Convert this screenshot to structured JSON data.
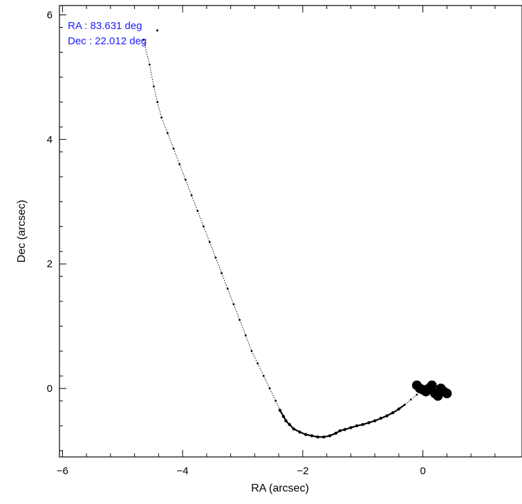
{
  "chart_data": {
    "type": "scatter",
    "title": "",
    "xlabel": "RA (arcsec)",
    "ylabel": "Dec (arcsec)",
    "xlim": [
      -6.05,
      1.65
    ],
    "ylim": [
      -1.1,
      6.15
    ],
    "xticks": [
      -6,
      -4,
      -2,
      0
    ],
    "xtick_labels": [
      "−6",
      "−4",
      "−2",
      "0"
    ],
    "yticks": [
      0,
      2,
      4,
      6
    ],
    "ytick_labels": [
      "0",
      "2",
      "4",
      "6"
    ],
    "grid": false,
    "legend": "none",
    "annotations": [
      "RA : 83.631 deg",
      "Dec : 22.012 deg"
    ],
    "annotation_color": "#1a1aff",
    "marker_color": "#000000",
    "track": {
      "x": [
        -4.65,
        -4.55,
        -4.48,
        -4.42,
        -4.35,
        -4.25,
        -4.15,
        -4.05,
        -3.95,
        -3.85,
        -3.75,
        -3.65,
        -3.55,
        -3.45,
        -3.35,
        -3.25,
        -3.15,
        -3.05,
        -2.95,
        -2.85,
        -2.75,
        -2.65,
        -2.55,
        -2.45,
        -2.38,
        -2.32,
        -2.28,
        -2.22,
        -2.15,
        -2.05,
        -1.95,
        -1.85,
        -1.75,
        -1.65,
        -1.55,
        -1.45,
        -1.38,
        -1.3,
        -1.2,
        -1.1,
        -1.0,
        -0.9,
        -0.8,
        -0.7,
        -0.6,
        -0.5,
        -0.4,
        -0.3,
        -0.2,
        -0.1
      ],
      "y": [
        5.6,
        5.2,
        4.85,
        4.6,
        4.35,
        4.1,
        3.85,
        3.6,
        3.35,
        3.1,
        2.85,
        2.6,
        2.35,
        2.1,
        1.85,
        1.6,
        1.35,
        1.1,
        0.85,
        0.6,
        0.4,
        0.2,
        0.0,
        -0.2,
        -0.35,
        -0.45,
        -0.52,
        -0.58,
        -0.65,
        -0.7,
        -0.74,
        -0.76,
        -0.78,
        -0.78,
        -0.76,
        -0.72,
        -0.68,
        -0.66,
        -0.63,
        -0.6,
        -0.58,
        -0.55,
        -0.52,
        -0.48,
        -0.44,
        -0.39,
        -0.33,
        -0.26,
        -0.18,
        -0.1
      ]
    },
    "core_cluster": {
      "x": [
        -0.1,
        -0.05,
        0.0,
        0.05,
        0.1,
        0.15,
        0.2,
        0.25,
        0.3,
        0.35,
        0.4
      ],
      "y": [
        0.05,
        0.0,
        -0.02,
        -0.05,
        0.0,
        0.05,
        -0.08,
        -0.12,
        0.0,
        -0.05,
        -0.08
      ]
    },
    "outlier": {
      "x": -4.42,
      "y": 5.75
    }
  }
}
